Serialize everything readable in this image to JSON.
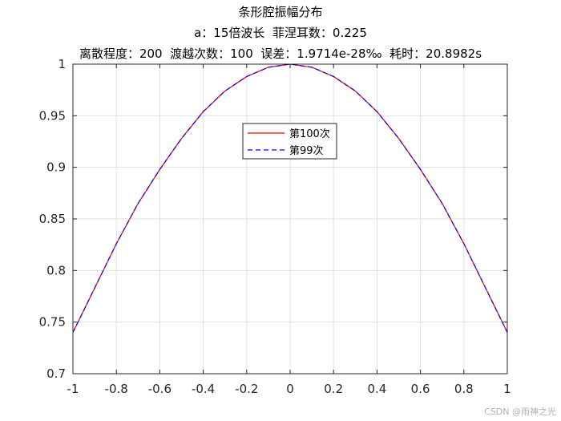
{
  "chart_data": {
    "type": "line",
    "title_lines": [
      "条形腔振幅分布",
      "a：15倍波长  菲涅耳数：0.225",
      "离散程度：200  渡越次数：100  误差：1.9714e-28‰  耗时：20.8982s"
    ],
    "xlabel": "",
    "ylabel": "",
    "xlim": [
      -1,
      1
    ],
    "ylim": [
      0.7,
      1
    ],
    "xticks": [
      -1,
      -0.8,
      -0.6,
      -0.4,
      -0.2,
      0,
      0.2,
      0.4,
      0.6,
      0.8,
      1
    ],
    "xtick_labels": [
      "-1",
      "-0.8",
      "-0.6",
      "-0.4",
      "-0.2",
      "0",
      "0.2",
      "0.4",
      "0.6",
      "0.8",
      "1"
    ],
    "yticks": [
      0.7,
      0.75,
      0.8,
      0.85,
      0.9,
      0.95,
      1
    ],
    "ytick_labels": [
      "0.7",
      "0.75",
      "0.8",
      "0.85",
      "0.9",
      "0.95",
      "1"
    ],
    "grid": true,
    "legend_position": "upper-center",
    "series": [
      {
        "name": "第100次",
        "color": "#ff0000",
        "style": "solid",
        "x": [
          -1,
          -0.9,
          -0.8,
          -0.7,
          -0.6,
          -0.5,
          -0.4,
          -0.3,
          -0.2,
          -0.1,
          0,
          0.1,
          0.2,
          0.3,
          0.4,
          0.5,
          0.6,
          0.7,
          0.8,
          0.9,
          1
        ],
        "y": [
          0.74,
          0.783,
          0.826,
          0.865,
          0.898,
          0.928,
          0.954,
          0.974,
          0.988,
          0.997,
          1.0,
          0.997,
          0.988,
          0.974,
          0.954,
          0.928,
          0.898,
          0.865,
          0.826,
          0.783,
          0.74
        ]
      },
      {
        "name": "第99次",
        "color": "#0000ff",
        "style": "dashed",
        "x": [
          -1,
          -0.9,
          -0.8,
          -0.7,
          -0.6,
          -0.5,
          -0.4,
          -0.3,
          -0.2,
          -0.1,
          0,
          0.1,
          0.2,
          0.3,
          0.4,
          0.5,
          0.6,
          0.7,
          0.8,
          0.9,
          1
        ],
        "y": [
          0.74,
          0.783,
          0.826,
          0.865,
          0.898,
          0.928,
          0.954,
          0.974,
          0.988,
          0.997,
          1.0,
          0.997,
          0.988,
          0.974,
          0.954,
          0.928,
          0.898,
          0.865,
          0.826,
          0.783,
          0.74
        ]
      }
    ]
  },
  "watermark": "CSDN @雨神之光"
}
